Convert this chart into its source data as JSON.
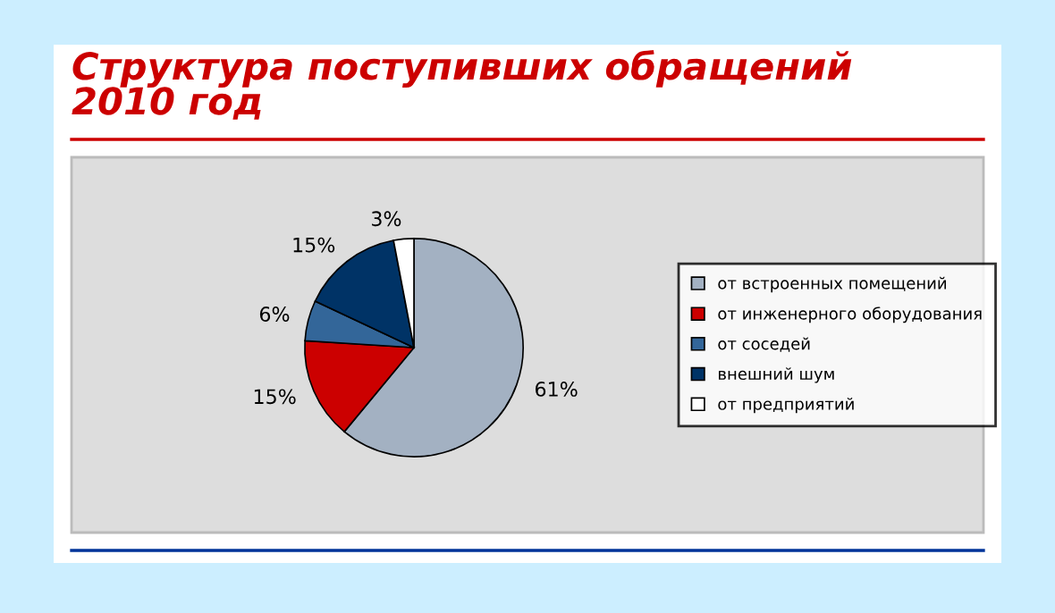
{
  "chart_data": {
    "type": "pie",
    "title": "Структура поступивших обращений\n2010 год",
    "categories": [
      "от встроенных помещений",
      "от инженерного оборудования",
      "от соседей",
      "внешний шум",
      "от предприятий"
    ],
    "values": [
      61,
      15,
      6,
      15,
      3
    ],
    "value_labels": [
      "61%",
      "15%",
      "6%",
      "15%",
      "3%"
    ],
    "colors": [
      "#a3b1c2",
      "#cc0000",
      "#336699",
      "#003366",
      "#ffffff"
    ],
    "legend": "right"
  }
}
